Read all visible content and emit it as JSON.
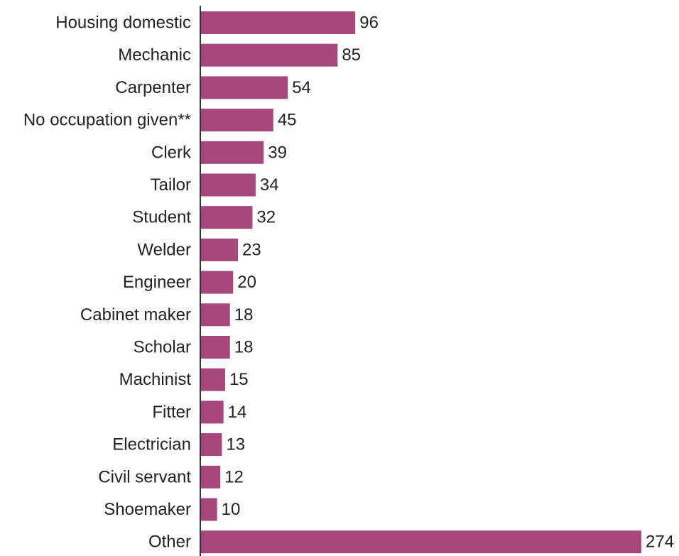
{
  "chart_data": {
    "type": "bar",
    "orientation": "horizontal",
    "categories": [
      "Housing domestic",
      "Mechanic",
      "Carpenter",
      "No occupation given**",
      "Clerk",
      "Tailor",
      "Student",
      "Welder",
      "Engineer",
      "Cabinet maker",
      "Scholar",
      "Machinist",
      "Fitter",
      "Electrician",
      "Civil servant",
      "Shoemaker",
      "Other"
    ],
    "values": [
      96,
      85,
      54,
      45,
      39,
      34,
      32,
      23,
      20,
      18,
      18,
      15,
      14,
      13,
      12,
      10,
      274
    ],
    "title": "",
    "xlabel": "",
    "ylabel": "",
    "xlim": [
      0,
      274
    ],
    "grid": false,
    "legend": "none",
    "data_labels": true
  },
  "colors": {
    "bar": "#a6487c",
    "axis": "#333333",
    "text": "#222222"
  }
}
